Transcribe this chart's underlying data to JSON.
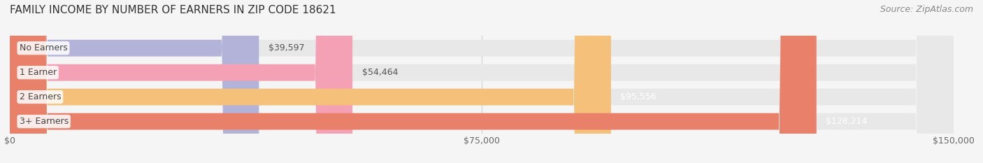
{
  "title": "FAMILY INCOME BY NUMBER OF EARNERS IN ZIP CODE 18621",
  "source": "Source: ZipAtlas.com",
  "categories": [
    "No Earners",
    "1 Earner",
    "2 Earners",
    "3+ Earners"
  ],
  "values": [
    39597,
    54464,
    95556,
    128214
  ],
  "bar_colors": [
    "#b3b3d9",
    "#f4a0b5",
    "#f5c07a",
    "#e8806a"
  ],
  "bar_bg_color": "#e8e8e8",
  "value_labels": [
    "$39,597",
    "$54,464",
    "$95,556",
    "$128,214"
  ],
  "value_label_colors": [
    "#555555",
    "#555555",
    "#ffffff",
    "#ffffff"
  ],
  "xlim": [
    0,
    150000
  ],
  "xticks": [
    0,
    75000,
    150000
  ],
  "xtick_labels": [
    "$0",
    "$75,000",
    "$150,000"
  ],
  "title_fontsize": 11,
  "source_fontsize": 9,
  "bar_label_fontsize": 9,
  "value_fontsize": 9,
  "tick_fontsize": 9,
  "background_color": "#f5f5f5"
}
